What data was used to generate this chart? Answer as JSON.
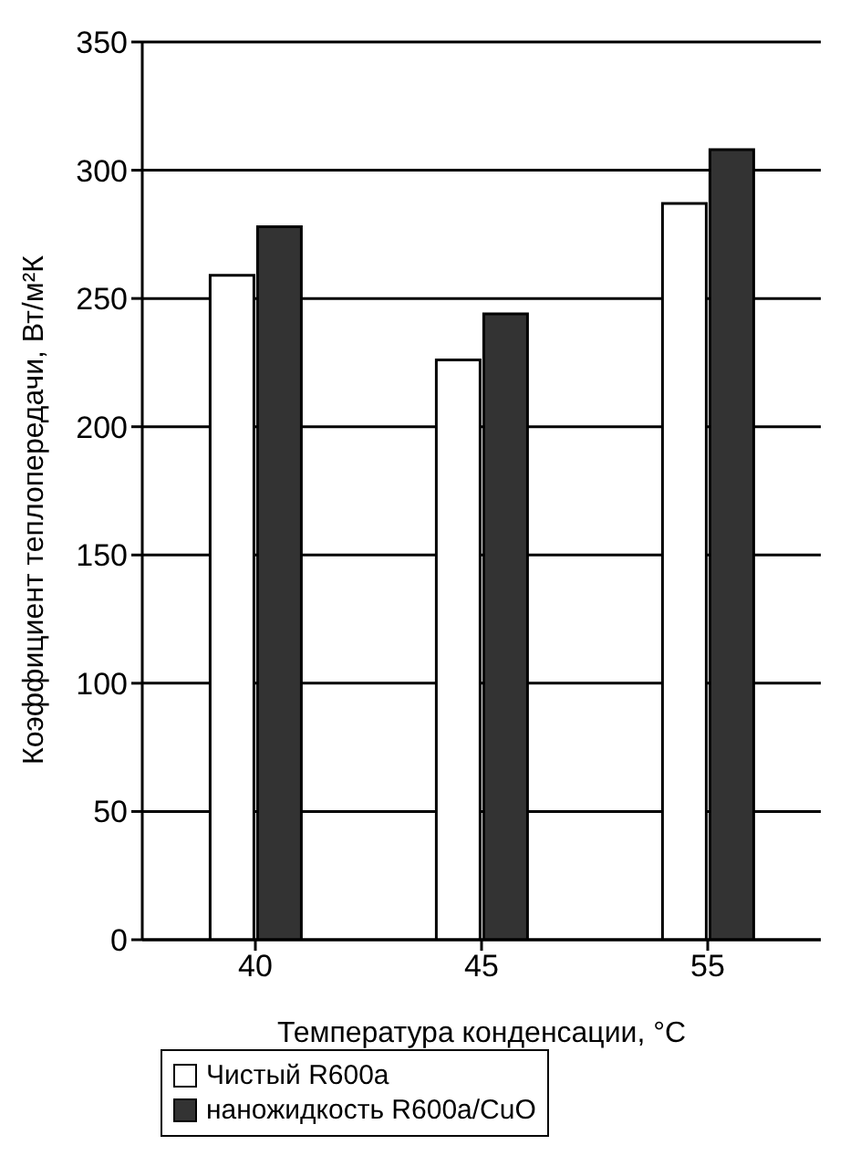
{
  "chart_data": {
    "type": "bar",
    "xlabel": "Температура конденсации, °С",
    "ylabel": "Коэффициент теплопередачи, Вт/м²К",
    "categories": [
      "40",
      "45",
      "55"
    ],
    "series": [
      {
        "name": "Чистый R600a",
        "color": "#ffffff",
        "values": [
          259,
          226,
          287
        ]
      },
      {
        "name": "наножидкость R600a/CuO",
        "color": "#333333",
        "values": [
          278,
          244,
          308
        ]
      }
    ],
    "ylim": [
      0,
      350
    ],
    "yticks": [
      0,
      50,
      100,
      150,
      200,
      250,
      300,
      350
    ],
    "grid": "y",
    "legend": "bottom left"
  }
}
